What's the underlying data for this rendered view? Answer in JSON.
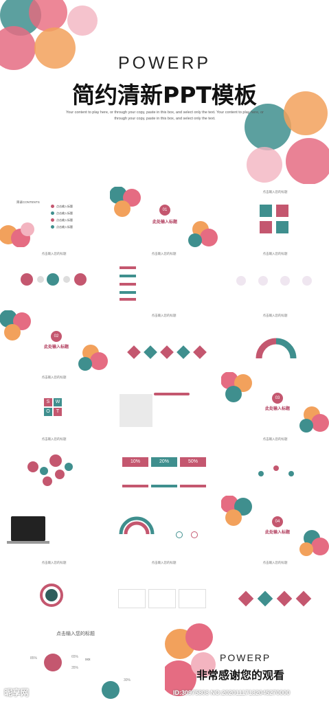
{
  "hero": {
    "brand": "POWERP",
    "title": "简约清新PPT模板",
    "subtitle": "Your content to play here, or through your copy, paste in this box, and select only the text. Your content to play here, or through your copy, paste in this box, and select only the text."
  },
  "slide_header": "点击输入您的标题",
  "toc": {
    "label": "目录CONTENTS",
    "items": [
      "点击输入标题",
      "点击输入标题",
      "点击输入标题",
      "点击输入标题"
    ]
  },
  "sections": [
    {
      "num": "01",
      "label": "此处输入标题"
    },
    {
      "num": "02",
      "label": "此处输入标题"
    },
    {
      "num": "03",
      "label": "此处输入标题"
    },
    {
      "num": "04",
      "label": "此处输入标题"
    }
  ],
  "swot": [
    "S",
    "W",
    "O",
    "T"
  ],
  "percent_table": [
    "10%",
    "20%",
    "50%"
  ],
  "bottom": {
    "title": "点击输入您的标题",
    "percents": [
      "85%",
      "65%",
      "35%",
      "30%"
    ],
    "badge": "xxx"
  },
  "thanks": {
    "brand": "POWERP",
    "title": "非常感谢您的观看"
  },
  "watermark": {
    "left": "昵享网",
    "id": "ID:30975808 NO:20201117132045270000"
  },
  "colors": {
    "rose": "#c4576f",
    "teal": "#3f8f8e",
    "orange": "#f2a15c",
    "pink": "#f3b4c0"
  }
}
